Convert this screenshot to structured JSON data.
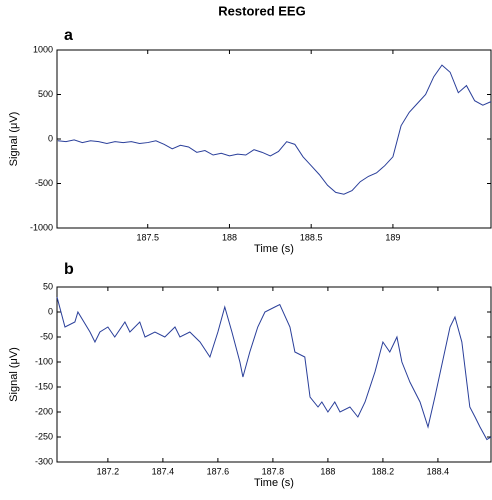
{
  "chart_data": [
    {
      "type": "line",
      "title": "Restored EEG",
      "panel_label": "a",
      "xlabel": "Time (s)",
      "ylabel": "Signal (μV)",
      "color": "#2a3f9a",
      "xlim": [
        186.945,
        189.6
      ],
      "ylim": [
        -1000,
        1000
      ],
      "xticks": [
        187.5,
        188,
        188.5,
        189
      ],
      "yticks": [
        -1000,
        -500,
        0,
        500,
        1000
      ],
      "x": [
        186.95,
        187.0,
        187.05,
        187.1,
        187.15,
        187.2,
        187.25,
        187.3,
        187.35,
        187.4,
        187.45,
        187.5,
        187.55,
        187.6,
        187.65,
        187.7,
        187.75,
        187.8,
        187.85,
        187.9,
        187.95,
        188.0,
        188.05,
        188.1,
        188.15,
        188.2,
        188.25,
        188.3,
        188.35,
        188.4,
        188.45,
        188.5,
        188.55,
        188.6,
        188.65,
        188.7,
        188.75,
        188.8,
        188.85,
        188.9,
        188.95,
        189.0,
        189.05,
        189.1,
        189.15,
        189.2,
        189.25,
        189.3,
        189.35,
        189.4,
        189.45,
        189.5,
        189.55,
        189.6
      ],
      "values": [
        -20,
        -30,
        -10,
        -40,
        -20,
        -30,
        -50,
        -30,
        -40,
        -30,
        -50,
        -40,
        -20,
        -60,
        -110,
        -70,
        -90,
        -150,
        -130,
        -180,
        -160,
        -190,
        -170,
        -180,
        -120,
        -150,
        -190,
        -140,
        -30,
        -60,
        -200,
        -300,
        -400,
        -520,
        -600,
        -620,
        -580,
        -480,
        -420,
        -380,
        -300,
        -200,
        150,
        300,
        400,
        500,
        700,
        830,
        750,
        520,
        600,
        430,
        380,
        420
      ]
    },
    {
      "type": "line",
      "panel_label": "b",
      "xlabel": "Time (s)",
      "ylabel": "Signal (μV)",
      "color": "#2a3f9a",
      "xlim": [
        187.015,
        188.593
      ],
      "ylim": [
        -300,
        50
      ],
      "xticks": [
        187.2,
        187.4,
        187.6,
        187.8,
        188,
        188.2,
        188.4
      ],
      "yticks": [
        -300,
        -250,
        -200,
        -150,
        -100,
        -50,
        0,
        50
      ],
      "x": [
        187.015,
        187.044,
        187.08,
        187.091,
        187.135,
        187.153,
        187.171,
        187.2,
        187.225,
        187.262,
        187.28,
        187.316,
        187.335,
        187.371,
        187.407,
        187.444,
        187.462,
        187.498,
        187.535,
        187.571,
        187.6,
        187.625,
        187.651,
        187.68,
        187.691,
        187.716,
        187.745,
        187.771,
        187.807,
        187.825,
        187.862,
        187.88,
        187.916,
        187.935,
        187.964,
        187.978,
        188.0,
        188.025,
        188.044,
        188.08,
        188.109,
        188.135,
        188.171,
        188.2,
        188.225,
        188.251,
        188.269,
        188.298,
        188.335,
        188.364,
        188.389,
        188.444,
        188.462,
        188.487,
        188.516,
        188.535,
        188.553,
        188.578,
        188.593
      ],
      "values": [
        30,
        -30,
        -20,
        0,
        -40,
        -60,
        -40,
        -30,
        -50,
        -20,
        -40,
        -20,
        -50,
        -40,
        -50,
        -30,
        -50,
        -40,
        -60,
        -90,
        -40,
        10,
        -40,
        -100,
        -130,
        -80,
        -30,
        0,
        10,
        15,
        -30,
        -80,
        -90,
        -170,
        -190,
        -180,
        -200,
        -180,
        -200,
        -190,
        -210,
        -180,
        -120,
        -60,
        -80,
        -50,
        -100,
        -140,
        -180,
        -230,
        -170,
        -30,
        -10,
        -60,
        -190,
        -210,
        -230,
        -255,
        -250
      ]
    }
  ]
}
